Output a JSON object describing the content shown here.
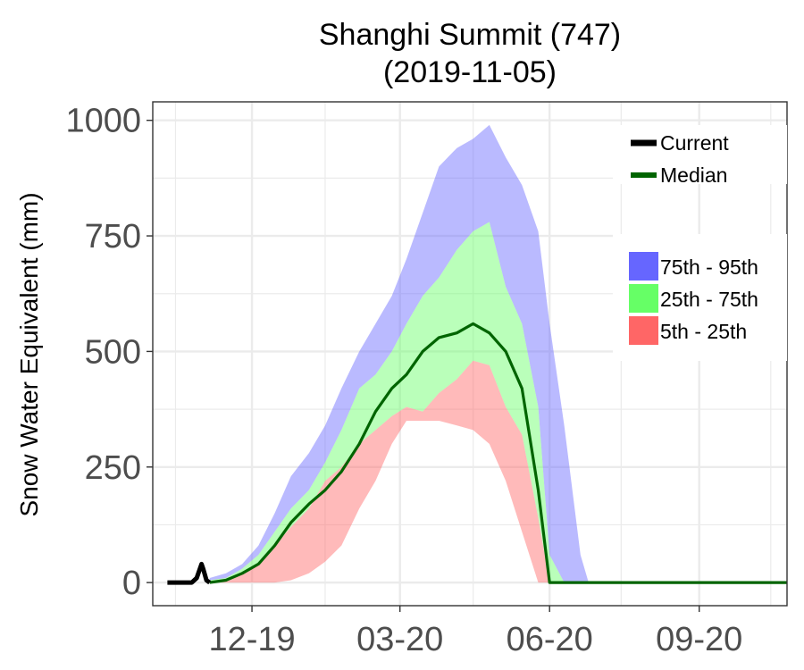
{
  "chart_data": {
    "type": "area",
    "title": [
      "Shanghi Summit (747)",
      "(2019-11-05)"
    ],
    "ylabel": "Snow Water Equivalent (mm)",
    "xlabel": "",
    "ylim": [
      -50,
      1040
    ],
    "yticks": [
      0,
      250,
      500,
      750,
      1000
    ],
    "xticks": [
      "12-19",
      "03-20",
      "06-20",
      "09-20"
    ],
    "xlim": [
      "2019-10-01",
      "2020-10-25"
    ],
    "grid": true,
    "legend_position": "right",
    "colors": {
      "current": "#000000",
      "median": "#006400",
      "p75_95": "#6666ff",
      "p25_75": "#66ff66",
      "p5_25": "#ff6666",
      "grid": "#ebebeb",
      "panel_border": "#333333"
    },
    "bands": {
      "dates": [
        "2019-11-05",
        "2019-11-15",
        "2019-11-25",
        "2019-12-05",
        "2019-12-15",
        "2019-12-25",
        "2020-01-05",
        "2020-01-15",
        "2020-01-25",
        "2020-02-05",
        "2020-02-15",
        "2020-02-25",
        "2020-03-05",
        "2020-03-15",
        "2020-03-25",
        "2020-04-05",
        "2020-04-15",
        "2020-04-25",
        "2020-05-05",
        "2020-05-15",
        "2020-05-25",
        "2020-06-01",
        "2020-06-10",
        "2020-06-20",
        "2020-06-25"
      ],
      "p5": [
        0,
        0,
        0,
        0,
        0,
        5,
        20,
        45,
        80,
        160,
        220,
        300,
        350,
        350,
        350,
        340,
        330,
        300,
        220,
        110,
        0,
        0,
        0,
        0,
        0
      ],
      "p25": [
        0,
        5,
        20,
        40,
        80,
        120,
        160,
        220,
        250,
        300,
        330,
        360,
        380,
        370,
        410,
        440,
        480,
        470,
        380,
        320,
        140,
        0,
        0,
        0,
        0
      ],
      "p75": [
        5,
        10,
        30,
        60,
        110,
        160,
        200,
        260,
        330,
        420,
        450,
        500,
        560,
        620,
        660,
        720,
        760,
        780,
        640,
        560,
        380,
        60,
        0,
        0,
        0
      ],
      "p95": [
        10,
        20,
        40,
        80,
        150,
        230,
        280,
        340,
        420,
        500,
        560,
        620,
        700,
        800,
        900,
        940,
        960,
        990,
        920,
        860,
        760,
        560,
        340,
        60,
        0
      ]
    },
    "series": [
      {
        "name": "Current",
        "dates": [
          "2019-10-10",
          "2019-10-20",
          "2019-10-25",
          "2019-10-28",
          "2019-10-31",
          "2019-11-01",
          "2019-11-03",
          "2019-11-05"
        ],
        "values": [
          0,
          0,
          0,
          10,
          40,
          30,
          5,
          0
        ]
      },
      {
        "name": "Median",
        "dates": [
          "2019-11-05",
          "2019-11-15",
          "2019-11-25",
          "2019-12-05",
          "2019-12-15",
          "2019-12-25",
          "2020-01-05",
          "2020-01-15",
          "2020-01-25",
          "2020-02-05",
          "2020-02-15",
          "2020-02-25",
          "2020-03-05",
          "2020-03-15",
          "2020-03-25",
          "2020-04-05",
          "2020-04-15",
          "2020-04-25",
          "2020-05-05",
          "2020-05-15",
          "2020-05-25",
          "2020-06-01",
          "2020-06-05",
          "2020-10-25"
        ],
        "values": [
          0,
          5,
          20,
          40,
          80,
          130,
          170,
          200,
          240,
          300,
          370,
          420,
          450,
          500,
          530,
          540,
          560,
          540,
          500,
          420,
          200,
          0,
          0,
          0
        ]
      }
    ],
    "legend": {
      "lines": [
        "Current",
        "Median"
      ],
      "bands": [
        "75th - 95th",
        "25th - 75th",
        "5th - 25th"
      ]
    }
  }
}
